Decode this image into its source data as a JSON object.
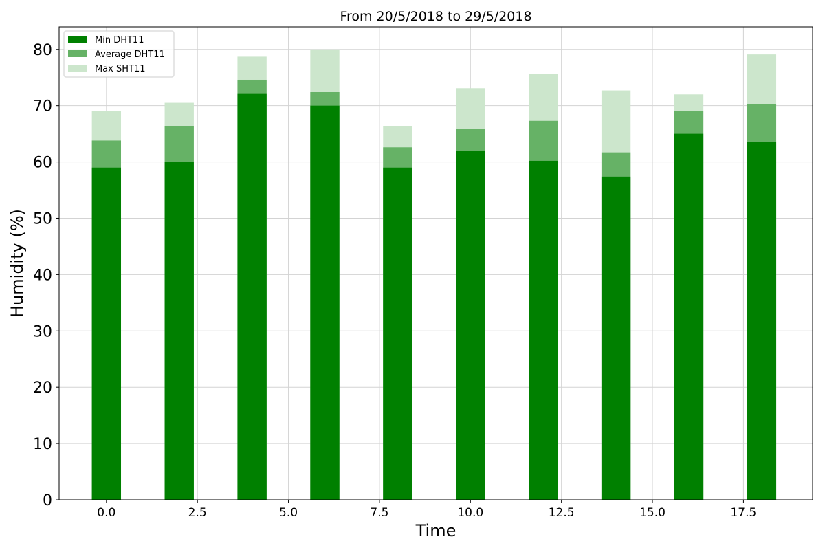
{
  "chart_data": {
    "type": "bar",
    "title": "From 20/5/2018  to 29/5/2018",
    "xlabel": "Time",
    "ylabel": "Humidity (%)",
    "xlim": [
      -1.3,
      19.4
    ],
    "ylim": [
      0,
      84
    ],
    "grid": true,
    "legend_position": "top-left",
    "x": [
      0,
      2,
      4,
      6,
      8,
      10,
      12,
      14,
      16,
      18
    ],
    "xticks": [
      0.0,
      2.5,
      5.0,
      7.5,
      10.0,
      12.5,
      15.0,
      17.5
    ],
    "xtick_labels": [
      "0.0",
      "2.5",
      "5.0",
      "7.5",
      "10.0",
      "12.5",
      "15.0",
      "17.5"
    ],
    "yticks": [
      0,
      10,
      20,
      30,
      40,
      50,
      60,
      70,
      80
    ],
    "ytick_labels": [
      "0",
      "10",
      "20",
      "30",
      "40",
      "50",
      "60",
      "70",
      "80"
    ],
    "series": [
      {
        "name": "Min DHT11",
        "color": "#008000",
        "values": [
          59.0,
          60.0,
          72.2,
          70.0,
          59.0,
          62.0,
          60.2,
          57.4,
          65.0,
          63.6
        ]
      },
      {
        "name": "Average DHT11",
        "color": "#66b266",
        "values": [
          63.8,
          66.4,
          74.6,
          72.4,
          62.6,
          65.9,
          67.3,
          61.7,
          69.0,
          70.3
        ]
      },
      {
        "name": "Max SHT11",
        "color": "#cce6cc",
        "values": [
          69.0,
          70.5,
          78.7,
          80.0,
          66.4,
          73.1,
          75.6,
          72.7,
          72.0,
          79.1
        ]
      }
    ]
  }
}
